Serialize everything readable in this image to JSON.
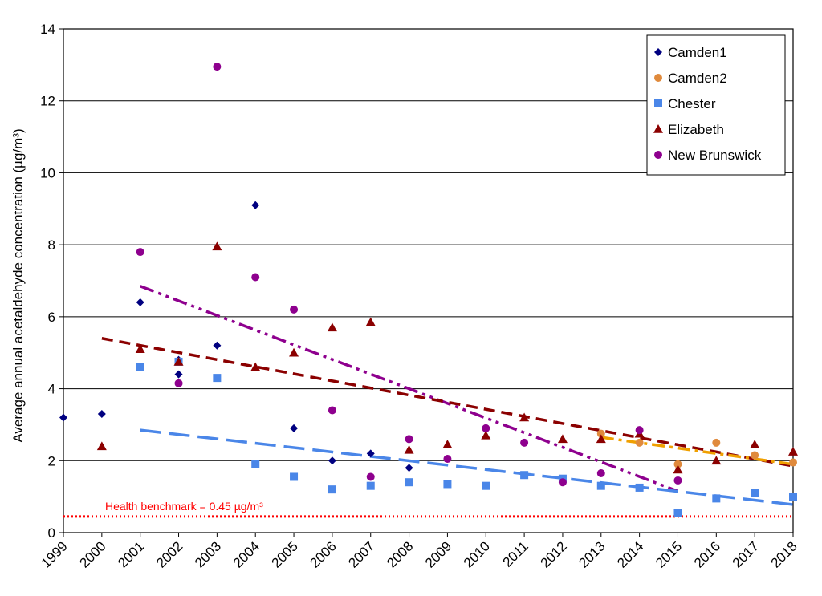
{
  "chart_data": {
    "type": "scatter",
    "ylabel": "Average annual  acetaldehyde concentration (µg/m³)",
    "ylim": [
      0,
      14
    ],
    "yticks": [
      0,
      2,
      4,
      6,
      8,
      10,
      12,
      14
    ],
    "x_categories": [
      "1999",
      "2000",
      "2001",
      "2002",
      "2003",
      "2004",
      "2005",
      "2006",
      "2007",
      "2008",
      "2009",
      "2010",
      "2011",
      "2012",
      "2013",
      "2014",
      "2015",
      "2016",
      "2017",
      "2018"
    ],
    "grid": "horizontal",
    "legend_position": "top-right",
    "series": [
      {
        "name": "Camden1",
        "marker": "diamond",
        "color": "#000080",
        "points": [
          [
            1999,
            3.2
          ],
          [
            2000,
            3.3
          ],
          [
            2001,
            6.4
          ],
          [
            2002,
            4.4
          ],
          [
            2002,
            4.8
          ],
          [
            2003,
            5.2
          ],
          [
            2004,
            9.1
          ],
          [
            2005,
            2.9
          ],
          [
            2006,
            2.0
          ],
          [
            2007,
            2.2
          ],
          [
            2008,
            1.8
          ]
        ]
      },
      {
        "name": "Camden2",
        "marker": "circle",
        "color": "#e08a3c",
        "points": [
          [
            2013,
            2.75
          ],
          [
            2014,
            2.5
          ],
          [
            2015,
            1.9
          ],
          [
            2016,
            2.5
          ],
          [
            2017,
            2.15
          ],
          [
            2018,
            1.95
          ]
        ]
      },
      {
        "name": "Chester",
        "marker": "square",
        "color": "#4a86e8",
        "points": [
          [
            2001,
            4.6
          ],
          [
            2002,
            4.75
          ],
          [
            2003,
            4.3
          ],
          [
            2004,
            1.9
          ],
          [
            2005,
            1.55
          ],
          [
            2006,
            1.2
          ],
          [
            2007,
            1.3
          ],
          [
            2008,
            1.4
          ],
          [
            2009,
            1.35
          ],
          [
            2010,
            1.3
          ],
          [
            2011,
            1.6
          ],
          [
            2012,
            1.5
          ],
          [
            2013,
            1.3
          ],
          [
            2014,
            1.25
          ],
          [
            2015,
            0.55
          ],
          [
            2016,
            0.95
          ],
          [
            2017,
            1.1
          ],
          [
            2018,
            1.0
          ]
        ]
      },
      {
        "name": "Elizabeth",
        "marker": "triangle",
        "color": "#8b0000",
        "points": [
          [
            2000,
            2.4
          ],
          [
            2001,
            5.1
          ],
          [
            2002,
            4.75
          ],
          [
            2003,
            7.95
          ],
          [
            2004,
            4.6
          ],
          [
            2005,
            5.0
          ],
          [
            2006,
            5.7
          ],
          [
            2007,
            5.85
          ],
          [
            2008,
            2.3
          ],
          [
            2009,
            2.45
          ],
          [
            2010,
            2.7
          ],
          [
            2011,
            3.2
          ],
          [
            2012,
            2.6
          ],
          [
            2013,
            2.6
          ],
          [
            2014,
            2.75
          ],
          [
            2015,
            1.75
          ],
          [
            2016,
            2.0
          ],
          [
            2017,
            2.45
          ],
          [
            2018,
            2.25
          ]
        ]
      },
      {
        "name": "New Brunswick",
        "marker": "circle",
        "color": "#8e008e",
        "points": [
          [
            2001,
            7.8
          ],
          [
            2002,
            4.15
          ],
          [
            2003,
            12.95
          ],
          [
            2004,
            7.1
          ],
          [
            2005,
            6.2
          ],
          [
            2006,
            3.4
          ],
          [
            2007,
            1.55
          ],
          [
            2008,
            2.6
          ],
          [
            2009,
            2.05
          ],
          [
            2010,
            2.9
          ],
          [
            2011,
            2.5
          ],
          [
            2012,
            1.4
          ],
          [
            2013,
            1.65
          ],
          [
            2014,
            2.85
          ],
          [
            2015,
            1.45
          ]
        ]
      }
    ],
    "trendlines": [
      {
        "series": "New Brunswick",
        "style": "dash-dot-dot",
        "color": "#8e008e",
        "from": [
          2001,
          6.85
        ],
        "to": [
          2015,
          1.15
        ]
      },
      {
        "series": "Elizabeth",
        "style": "dashed",
        "color": "#8b0000",
        "from": [
          2000,
          5.4
        ],
        "to": [
          2018,
          1.85
        ]
      },
      {
        "series": "Chester",
        "style": "long-dash",
        "color": "#4a86e8",
        "from": [
          2001,
          2.85
        ],
        "to": [
          2018,
          0.78
        ]
      },
      {
        "series": "Camden2",
        "style": "dash-dot",
        "color": "#f0a000",
        "from": [
          2013,
          2.65
        ],
        "to": [
          2018,
          1.9
        ]
      }
    ],
    "benchmark": {
      "value": 0.45,
      "label": "Health benchmark = 0.45 µg/m³",
      "color": "#ff0000"
    }
  }
}
